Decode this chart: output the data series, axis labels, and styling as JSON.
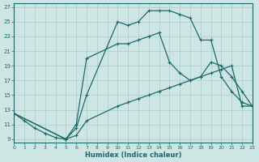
{
  "xlabel": "Humidex (Indice chaleur)",
  "xlim": [
    0,
    23
  ],
  "ylim": [
    8.5,
    27.5
  ],
  "yticks": [
    9,
    11,
    13,
    15,
    17,
    19,
    21,
    23,
    25,
    27
  ],
  "xticks": [
    0,
    1,
    2,
    3,
    4,
    5,
    6,
    7,
    8,
    9,
    10,
    11,
    12,
    13,
    14,
    15,
    16,
    17,
    18,
    19,
    20,
    21,
    22,
    23
  ],
  "bg_color": "#cde5e3",
  "line_color": "#1a6b6b",
  "grid_color": "#aacecc",
  "curve_top_x": [
    0,
    1,
    2,
    3,
    4,
    5,
    6,
    7,
    10,
    11,
    12,
    13,
    14,
    15,
    16,
    17,
    18,
    19,
    20,
    21,
    22,
    23
  ],
  "curve_top_y": [
    12.5,
    11.5,
    10.5,
    9.8,
    9.2,
    9.0,
    10.5,
    15.0,
    25.0,
    24.5,
    25.0,
    26.5,
    26.5,
    26.5,
    26.0,
    25.5,
    22.5,
    22.5,
    17.5,
    15.5,
    14.0,
    13.5
  ],
  "curve_mid_x": [
    0,
    5,
    6,
    7,
    10,
    11,
    12,
    13,
    14,
    15,
    16,
    17,
    18,
    19,
    20,
    21,
    22,
    23
  ],
  "curve_mid_y": [
    12.5,
    9.0,
    11.0,
    20.0,
    22.0,
    22.0,
    22.5,
    23.0,
    23.5,
    19.5,
    18.0,
    17.0,
    17.5,
    19.5,
    19.0,
    17.5,
    15.5,
    13.5
  ],
  "curve_bot_x": [
    0,
    5,
    6,
    7,
    10,
    11,
    12,
    13,
    14,
    15,
    16,
    17,
    18,
    19,
    20,
    21,
    22,
    23
  ],
  "curve_bot_y": [
    12.5,
    9.0,
    9.5,
    11.5,
    13.5,
    14.0,
    14.5,
    15.0,
    15.5,
    16.0,
    16.5,
    17.0,
    17.5,
    18.0,
    18.5,
    19.0,
    13.5,
    13.5
  ]
}
